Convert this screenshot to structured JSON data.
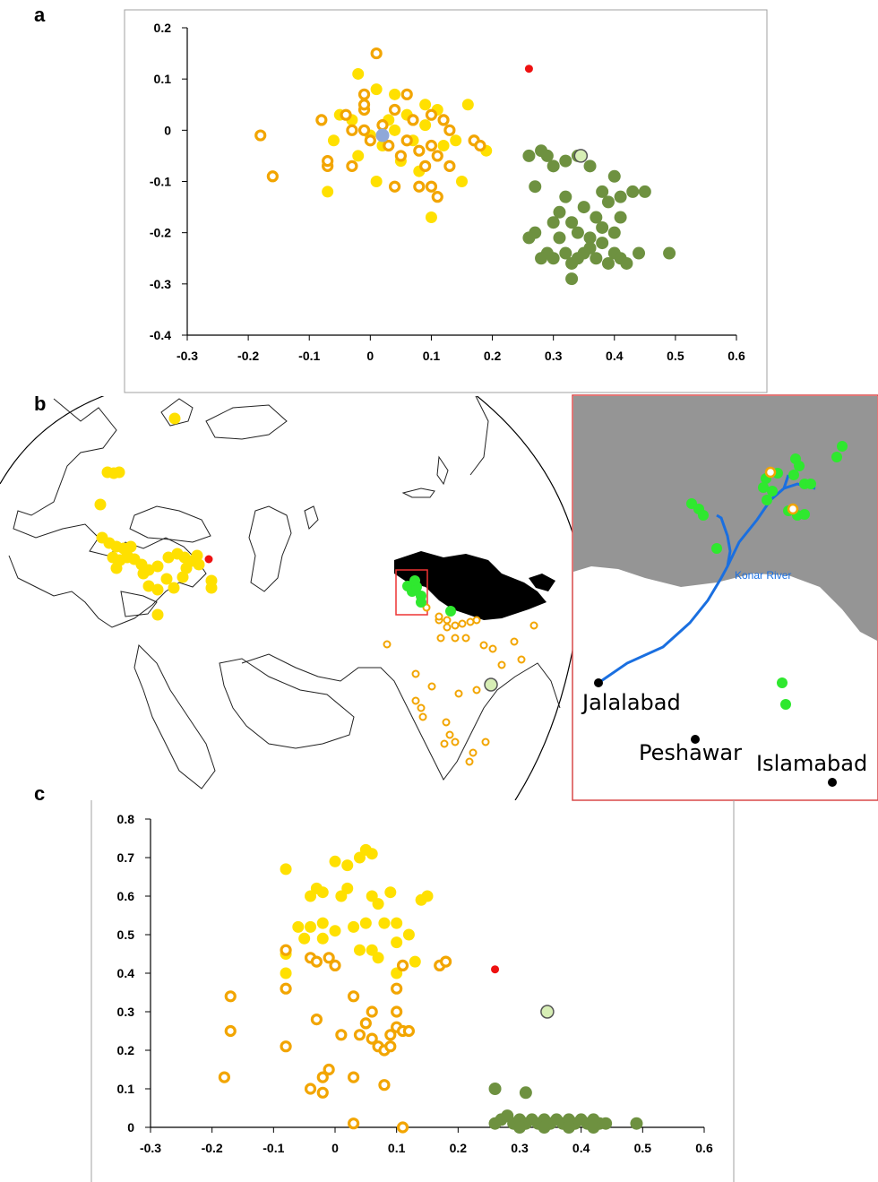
{
  "panels": {
    "a": "a",
    "b": "b",
    "c": "c"
  },
  "colors": {
    "yellow_fill": "#ffe000",
    "orange_ring": "#f2a500",
    "green_dark": "#6e9140",
    "green_bright": "#2fe82f",
    "red": "#ee1111",
    "blue_dot": "#8fa8d8",
    "pale_green": "#d7eeb5",
    "river": "#1a6fe0",
    "mountain": "#959595",
    "inset_border": "#d94848"
  },
  "chart_data": [
    {
      "type": "scatter",
      "id": "a",
      "xlim": [
        -0.3,
        0.6
      ],
      "ylim": [
        -0.4,
        0.2
      ],
      "xticks": [
        "-0.3",
        "-0.2",
        "-0.1",
        "0",
        "0.1",
        "0.2",
        "0.3",
        "0.4",
        "0.5",
        "0.6"
      ],
      "yticks": [
        "0.2",
        "0.1",
        "0",
        "-0.1",
        "-0.2",
        "-0.3",
        "-0.4"
      ],
      "series": [
        {
          "style": "yellow",
          "points": [
            [
              -0.02,
              0.11
            ],
            [
              0.01,
              0.08
            ],
            [
              0.04,
              0.07
            ],
            [
              0.06,
              0.03
            ],
            [
              0.09,
              0.05
            ],
            [
              0.11,
              0.04
            ],
            [
              -0.05,
              0.03
            ],
            [
              -0.03,
              0.02
            ],
            [
              0.0,
              -0.01
            ],
            [
              -0.06,
              -0.02
            ],
            [
              0.02,
              -0.03
            ],
            [
              0.04,
              0.0
            ],
            [
              0.07,
              -0.02
            ],
            [
              0.09,
              0.01
            ],
            [
              0.12,
              -0.03
            ],
            [
              -0.02,
              -0.05
            ],
            [
              0.05,
              -0.06
            ],
            [
              0.08,
              -0.08
            ],
            [
              0.16,
              0.05
            ],
            [
              0.14,
              -0.02
            ],
            [
              0.19,
              -0.04
            ],
            [
              -0.07,
              -0.12
            ],
            [
              0.01,
              -0.1
            ],
            [
              0.1,
              -0.17
            ],
            [
              0.15,
              -0.1
            ],
            [
              0.03,
              0.02
            ]
          ]
        },
        {
          "style": "ring",
          "points": [
            [
              0.01,
              0.15
            ],
            [
              -0.18,
              -0.01
            ],
            [
              -0.16,
              -0.09
            ],
            [
              -0.08,
              0.02
            ],
            [
              -0.04,
              0.03
            ],
            [
              -0.03,
              0.0
            ],
            [
              -0.01,
              0.07
            ],
            [
              -0.01,
              0.04
            ],
            [
              -0.01,
              0.0
            ],
            [
              0.0,
              -0.02
            ],
            [
              0.02,
              0.01
            ],
            [
              0.03,
              -0.03
            ],
            [
              0.04,
              0.04
            ],
            [
              0.05,
              -0.05
            ],
            [
              0.06,
              -0.02
            ],
            [
              0.07,
              0.02
            ],
            [
              0.08,
              -0.04
            ],
            [
              0.09,
              -0.07
            ],
            [
              0.1,
              0.03
            ],
            [
              0.1,
              -0.03
            ],
            [
              0.11,
              -0.05
            ],
            [
              0.12,
              0.02
            ],
            [
              0.13,
              0.0
            ],
            [
              0.13,
              -0.07
            ],
            [
              0.08,
              -0.11
            ],
            [
              0.1,
              -0.11
            ],
            [
              0.11,
              -0.13
            ],
            [
              0.04,
              -0.11
            ],
            [
              -0.07,
              -0.07
            ],
            [
              -0.07,
              -0.06
            ],
            [
              -0.03,
              -0.07
            ],
            [
              0.17,
              -0.02
            ],
            [
              0.18,
              -0.03
            ],
            [
              0.06,
              0.07
            ],
            [
              -0.01,
              0.05
            ]
          ]
        },
        {
          "style": "green_dark",
          "points": [
            [
              0.26,
              -0.05
            ],
            [
              0.28,
              -0.04
            ],
            [
              0.29,
              -0.05
            ],
            [
              0.3,
              -0.07
            ],
            [
              0.32,
              -0.06
            ],
            [
              0.34,
              -0.05
            ],
            [
              0.36,
              -0.07
            ],
            [
              0.27,
              -0.11
            ],
            [
              0.32,
              -0.13
            ],
            [
              0.35,
              -0.15
            ],
            [
              0.38,
              -0.12
            ],
            [
              0.4,
              -0.09
            ],
            [
              0.43,
              -0.12
            ],
            [
              0.45,
              -0.12
            ],
            [
              0.31,
              -0.16
            ],
            [
              0.33,
              -0.18
            ],
            [
              0.3,
              -0.18
            ],
            [
              0.37,
              -0.17
            ],
            [
              0.39,
              -0.14
            ],
            [
              0.41,
              -0.17
            ],
            [
              0.4,
              -0.2
            ],
            [
              0.38,
              -0.22
            ],
            [
              0.36,
              -0.21
            ],
            [
              0.34,
              -0.2
            ],
            [
              0.31,
              -0.21
            ],
            [
              0.27,
              -0.2
            ],
            [
              0.26,
              -0.21
            ],
            [
              0.29,
              -0.24
            ],
            [
              0.3,
              -0.25
            ],
            [
              0.32,
              -0.24
            ],
            [
              0.33,
              -0.26
            ],
            [
              0.35,
              -0.24
            ],
            [
              0.36,
              -0.23
            ],
            [
              0.37,
              -0.25
            ],
            [
              0.39,
              -0.26
            ],
            [
              0.4,
              -0.24
            ],
            [
              0.41,
              -0.25
            ],
            [
              0.42,
              -0.26
            ],
            [
              0.44,
              -0.24
            ],
            [
              0.34,
              -0.25
            ],
            [
              0.28,
              -0.25
            ],
            [
              0.33,
              -0.29
            ],
            [
              0.49,
              -0.24
            ],
            [
              0.38,
              -0.19
            ],
            [
              0.41,
              -0.13
            ]
          ]
        },
        {
          "style": "red",
          "points": [
            [
              0.26,
              0.12
            ]
          ]
        },
        {
          "style": "blue",
          "points": [
            [
              0.02,
              -0.01
            ]
          ]
        },
        {
          "style": "pale",
          "points": [
            [
              0.345,
              -0.05
            ]
          ]
        }
      ]
    },
    {
      "type": "scatter",
      "id": "c",
      "xlim": [
        -0.3,
        0.6
      ],
      "ylim": [
        0,
        0.8
      ],
      "xticks": [
        "-0.3",
        "-0.2",
        "-0.1",
        "0",
        "0.1",
        "0.2",
        "0.3",
        "0.4",
        "0.5",
        "0.6"
      ],
      "yticks": [
        "0.8",
        "0.7",
        "0.6",
        "0.5",
        "0.4",
        "0.3",
        "0.2",
        "0.1",
        "0"
      ],
      "series": [
        {
          "style": "yellow",
          "points": [
            [
              -0.08,
              0.67
            ],
            [
              0.05,
              0.72
            ],
            [
              0.04,
              0.7
            ],
            [
              0.02,
              0.68
            ],
            [
              0.0,
              0.69
            ],
            [
              0.06,
              0.71
            ],
            [
              -0.03,
              0.62
            ],
            [
              -0.04,
              0.6
            ],
            [
              -0.02,
              0.61
            ],
            [
              0.01,
              0.6
            ],
            [
              0.02,
              0.62
            ],
            [
              0.06,
              0.6
            ],
            [
              0.09,
              0.61
            ],
            [
              0.07,
              0.58
            ],
            [
              0.15,
              0.6
            ],
            [
              0.14,
              0.59
            ],
            [
              -0.06,
              0.52
            ],
            [
              -0.04,
              0.52
            ],
            [
              -0.02,
              0.53
            ],
            [
              0.0,
              0.51
            ],
            [
              0.03,
              0.52
            ],
            [
              0.05,
              0.53
            ],
            [
              0.08,
              0.53
            ],
            [
              0.1,
              0.53
            ],
            [
              0.12,
              0.5
            ],
            [
              -0.05,
              0.49
            ],
            [
              -0.02,
              0.49
            ],
            [
              0.04,
              0.46
            ],
            [
              0.06,
              0.46
            ],
            [
              0.1,
              0.48
            ],
            [
              -0.08,
              0.45
            ],
            [
              -0.08,
              0.4
            ],
            [
              0.1,
              0.4
            ],
            [
              0.13,
              0.43
            ],
            [
              0.07,
              0.44
            ]
          ]
        },
        {
          "style": "ring",
          "points": [
            [
              -0.08,
              0.46
            ],
            [
              -0.04,
              0.44
            ],
            [
              -0.03,
              0.43
            ],
            [
              -0.01,
              0.44
            ],
            [
              0.0,
              0.42
            ],
            [
              0.11,
              0.42
            ],
            [
              0.17,
              0.42
            ],
            [
              0.18,
              0.43
            ],
            [
              -0.17,
              0.34
            ],
            [
              -0.08,
              0.36
            ],
            [
              0.03,
              0.34
            ],
            [
              0.1,
              0.36
            ],
            [
              -0.17,
              0.25
            ],
            [
              -0.08,
              0.21
            ],
            [
              -0.03,
              0.28
            ],
            [
              0.01,
              0.24
            ],
            [
              0.04,
              0.24
            ],
            [
              0.05,
              0.27
            ],
            [
              0.06,
              0.3
            ],
            [
              0.06,
              0.23
            ],
            [
              0.07,
              0.21
            ],
            [
              0.08,
              0.2
            ],
            [
              0.09,
              0.24
            ],
            [
              0.09,
              0.21
            ],
            [
              0.1,
              0.3
            ],
            [
              0.1,
              0.26
            ],
            [
              0.11,
              0.25
            ],
            [
              0.12,
              0.25
            ],
            [
              -0.18,
              0.13
            ],
            [
              -0.04,
              0.1
            ],
            [
              -0.02,
              0.09
            ],
            [
              -0.02,
              0.13
            ],
            [
              -0.01,
              0.15
            ],
            [
              0.03,
              0.13
            ],
            [
              0.08,
              0.11
            ],
            [
              0.03,
              0.01
            ],
            [
              0.11,
              0.0
            ]
          ]
        },
        {
          "style": "green_dark",
          "points": [
            [
              0.26,
              0.1
            ],
            [
              0.31,
              0.09
            ],
            [
              0.26,
              0.01
            ],
            [
              0.27,
              0.02
            ],
            [
              0.28,
              0.03
            ],
            [
              0.29,
              0.01
            ],
            [
              0.3,
              0.02
            ],
            [
              0.31,
              0.01
            ],
            [
              0.32,
              0.02
            ],
            [
              0.33,
              0.01
            ],
            [
              0.34,
              0.02
            ],
            [
              0.35,
              0.01
            ],
            [
              0.36,
              0.02
            ],
            [
              0.37,
              0.01
            ],
            [
              0.38,
              0.02
            ],
            [
              0.39,
              0.01
            ],
            [
              0.4,
              0.02
            ],
            [
              0.41,
              0.01
            ],
            [
              0.42,
              0.02
            ],
            [
              0.43,
              0.01
            ],
            [
              0.44,
              0.01
            ],
            [
              0.3,
              0.0
            ],
            [
              0.34,
              0.0
            ],
            [
              0.38,
              0.0
            ],
            [
              0.42,
              0.0
            ],
            [
              0.49,
              0.01
            ]
          ]
        },
        {
          "style": "red",
          "points": [
            [
              0.26,
              0.41
            ]
          ]
        },
        {
          "style": "pale",
          "points": [
            [
              0.345,
              0.3
            ]
          ]
        }
      ]
    }
  ],
  "map": {
    "id": "b",
    "inset": {
      "river_label": "Konar River",
      "cities": [
        {
          "name": "Jalalabad"
        },
        {
          "name": "Peshawar"
        },
        {
          "name": "Islamabad"
        }
      ]
    }
  }
}
